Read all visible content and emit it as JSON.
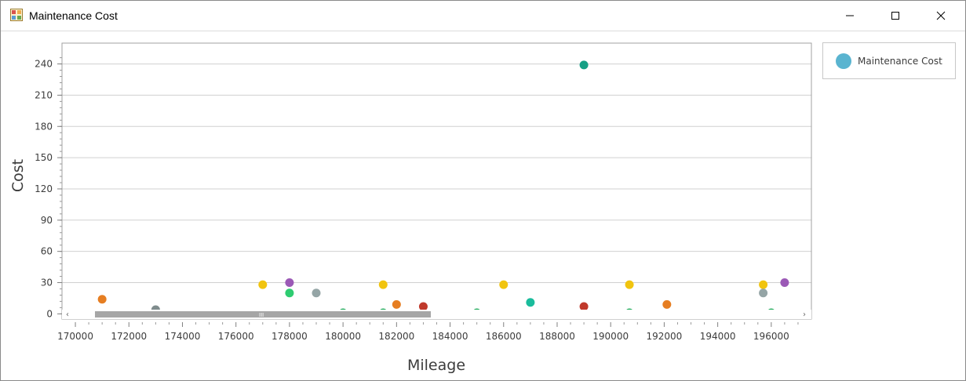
{
  "window": {
    "title": "Maintenance Cost",
    "icon": "chart-app-icon",
    "controls": [
      "minimize-icon",
      "maximize-icon",
      "close-icon"
    ]
  },
  "legend": {
    "label": "Maintenance Cost",
    "color": "#5ab4d0"
  },
  "chart_data": {
    "type": "scatter",
    "xlabel": "Mileage",
    "ylabel": "Cost",
    "xlim": [
      169500,
      197500
    ],
    "ylim": [
      -5,
      260
    ],
    "x_ticks": [
      170000,
      172000,
      174000,
      176000,
      178000,
      180000,
      182000,
      184000,
      186000,
      188000,
      190000,
      192000,
      194000,
      196000
    ],
    "y_ticks": [
      0,
      30,
      60,
      90,
      120,
      150,
      180,
      210,
      240
    ],
    "grid": "horizontal",
    "legend_position": "right",
    "scrollbar": "horizontal",
    "series": [
      {
        "name": "Maintenance Cost",
        "points": [
          {
            "x": 171000,
            "y": 14,
            "color": "#e67e22"
          },
          {
            "x": 173000,
            "y": 4,
            "color": "#7f8c8d"
          },
          {
            "x": 177000,
            "y": 28,
            "color": "#f1c40f"
          },
          {
            "x": 178000,
            "y": 30,
            "color": "#9b59b6"
          },
          {
            "x": 178000,
            "y": 20,
            "color": "#2ecc71"
          },
          {
            "x": 179000,
            "y": 20,
            "color": "#95a5a6"
          },
          {
            "x": 180000,
            "y": 1,
            "color": "#27ae60"
          },
          {
            "x": 181500,
            "y": 28,
            "color": "#f1c40f"
          },
          {
            "x": 181500,
            "y": 1,
            "color": "#27ae60"
          },
          {
            "x": 182000,
            "y": 9,
            "color": "#e67e22"
          },
          {
            "x": 183000,
            "y": 7,
            "color": "#c0392b"
          },
          {
            "x": 185000,
            "y": 1,
            "color": "#27ae60"
          },
          {
            "x": 186000,
            "y": 28,
            "color": "#f1c40f"
          },
          {
            "x": 187000,
            "y": 11,
            "color": "#1abc9c"
          },
          {
            "x": 189000,
            "y": 239,
            "color": "#16a085"
          },
          {
            "x": 189000,
            "y": 7,
            "color": "#c0392b"
          },
          {
            "x": 190700,
            "y": 28,
            "color": "#f1c40f"
          },
          {
            "x": 190700,
            "y": 1,
            "color": "#27ae60"
          },
          {
            "x": 192100,
            "y": 9,
            "color": "#e67e22"
          },
          {
            "x": 195700,
            "y": 28,
            "color": "#f1c40f"
          },
          {
            "x": 195700,
            "y": 20,
            "color": "#95a5a6"
          },
          {
            "x": 196000,
            "y": 1,
            "color": "#27ae60"
          },
          {
            "x": 196500,
            "y": 30,
            "color": "#9b59b6"
          }
        ]
      }
    ]
  }
}
